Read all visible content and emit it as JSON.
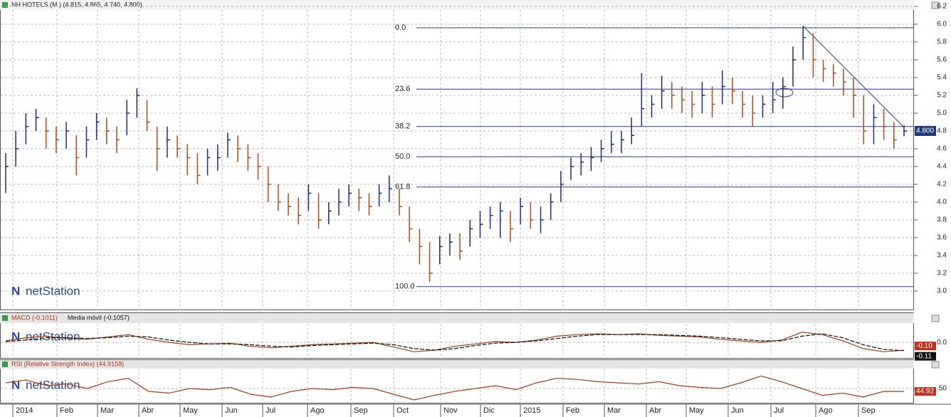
{
  "chart_data": [
    {
      "type": "ohlc",
      "title": "NH HOTELS (M.) (4.815, 4.865, 4.740, 4.800)",
      "watermark": "netStation",
      "up_color": "#1f2a7a",
      "down_color": "#b0481a",
      "last_label": "4.800",
      "x_labels": [
        "2014",
        "Feb",
        "Mar",
        "Abr",
        "May",
        "Jun",
        "Jul",
        "Ago",
        "Sep",
        "Oct",
        "Nov",
        "Dic",
        "2015",
        "Feb",
        "Mar",
        "Abr",
        "May",
        "Jun",
        "Jul",
        "Ago",
        "Sep"
      ],
      "high": [
        4.55,
        4.8,
        5.0,
        5.05,
        4.95,
        4.85,
        4.9,
        4.75,
        4.85,
        5.0,
        4.95,
        4.85,
        5.15,
        5.28,
        5.15,
        4.85,
        4.85,
        4.75,
        4.65,
        4.55,
        4.6,
        4.65,
        4.78,
        4.75,
        4.65,
        4.55,
        4.4,
        4.2,
        4.1,
        4.05,
        4.2,
        4.1,
        4.0,
        4.15,
        4.2,
        4.15,
        4.1,
        4.2,
        4.3,
        4.15,
        3.95,
        3.7,
        3.55,
        3.62,
        3.65,
        3.65,
        3.8,
        3.9,
        3.95,
        4.0,
        3.9,
        4.05,
        4.0,
        3.95,
        4.1,
        4.35,
        4.5,
        4.55,
        4.62,
        4.7,
        4.8,
        4.8,
        4.95,
        5.45,
        5.2,
        5.42,
        5.35,
        5.3,
        5.25,
        5.35,
        5.3,
        5.48,
        5.4,
        5.25,
        5.2,
        5.2,
        5.35,
        5.4,
        5.75,
        5.98,
        5.9,
        5.6,
        5.55,
        5.5,
        5.4,
        5.2,
        5.1,
        5.05,
        4.9,
        4.865
      ],
      "low": [
        4.1,
        4.4,
        4.65,
        4.8,
        4.6,
        4.55,
        4.6,
        4.3,
        4.5,
        4.7,
        4.65,
        4.55,
        4.75,
        4.95,
        4.8,
        4.35,
        4.5,
        4.5,
        4.3,
        4.2,
        4.3,
        4.35,
        4.5,
        4.45,
        4.35,
        4.25,
        4.0,
        3.9,
        3.85,
        3.75,
        3.9,
        3.7,
        3.75,
        3.85,
        3.95,
        3.9,
        3.85,
        3.95,
        4.0,
        3.85,
        3.55,
        3.3,
        3.1,
        3.3,
        3.4,
        3.35,
        3.5,
        3.6,
        3.7,
        3.6,
        3.55,
        3.75,
        3.7,
        3.65,
        3.8,
        4.0,
        4.25,
        4.3,
        4.35,
        4.45,
        4.55,
        4.55,
        4.65,
        4.85,
        4.95,
        5.05,
        5.05,
        5.0,
        4.95,
        5.0,
        4.95,
        5.1,
        5.1,
        4.95,
        4.85,
        4.95,
        5.0,
        5.05,
        5.3,
        5.6,
        5.4,
        5.35,
        5.3,
        5.2,
        4.95,
        4.65,
        4.65,
        4.7,
        4.6,
        4.74
      ],
      "close": [
        4.4,
        4.6,
        4.85,
        4.95,
        4.8,
        4.7,
        4.8,
        4.5,
        4.7,
        4.9,
        4.8,
        4.7,
        5.0,
        5.2,
        4.9,
        4.6,
        4.7,
        4.6,
        4.5,
        4.3,
        4.5,
        4.5,
        4.7,
        4.6,
        4.5,
        4.4,
        4.2,
        4.0,
        3.95,
        3.85,
        4.1,
        3.8,
        3.9,
        4.0,
        4.1,
        4.05,
        3.95,
        4.1,
        4.15,
        3.95,
        3.7,
        3.5,
        3.2,
        3.5,
        3.55,
        3.45,
        3.7,
        3.75,
        3.85,
        3.9,
        3.7,
        3.95,
        3.8,
        3.8,
        4.0,
        4.2,
        4.4,
        4.45,
        4.5,
        4.6,
        4.65,
        4.7,
        4.75,
        5.05,
        5.1,
        5.25,
        5.2,
        5.15,
        5.1,
        5.2,
        5.1,
        5.3,
        5.25,
        5.1,
        5.0,
        5.1,
        5.15,
        5.3,
        5.6,
        5.85,
        5.6,
        5.5,
        5.45,
        5.35,
        5.2,
        4.8,
        4.95,
        4.85,
        4.7,
        4.8
      ],
      "ylim": [
        2.86,
        6.24
      ],
      "yticks": [
        {
          "value": 3.0,
          "label": "3.0"
        },
        {
          "value": 3.2,
          "label": "3.2"
        },
        {
          "value": 3.4,
          "label": "3.4"
        },
        {
          "value": 3.6,
          "label": "3.6"
        },
        {
          "value": 3.8,
          "label": "3.8"
        },
        {
          "value": 4.0,
          "label": "4.0"
        },
        {
          "value": 4.2,
          "label": "4.2"
        },
        {
          "value": 4.4,
          "label": "4.4"
        },
        {
          "value": 4.6,
          "label": "4.6"
        },
        {
          "value": 4.8,
          "label": "4.8"
        },
        {
          "value": 5.0,
          "label": "5.0"
        },
        {
          "value": 5.2,
          "label": "5.2"
        },
        {
          "value": 5.4,
          "label": "5.4"
        },
        {
          "value": 5.6,
          "label": "5.6"
        },
        {
          "value": 5.8,
          "label": "5.8"
        },
        {
          "value": 6.0,
          "label": "6.0"
        },
        {
          "value": 6.2,
          "label": "6.2"
        }
      ],
      "fib_color": "#2a3a8a",
      "fib_levels": [
        {
          "value": 0,
          "label": "0.0",
          "price": 5.96
        },
        {
          "value": 23.6,
          "label": "23.6",
          "price": 5.27
        },
        {
          "value": 38.2,
          "label": "38.2",
          "price": 4.85
        },
        {
          "value": 50,
          "label": "50.0",
          "price": 4.51
        },
        {
          "value": 61.8,
          "label": "61.8",
          "price": 4.17
        },
        {
          "value": 100,
          "label": "100.0",
          "price": 3.05
        }
      ],
      "trendline": {
        "x": [
          79,
          89
        ],
        "values": [
          5.98,
          4.84
        ]
      }
    },
    {
      "type": "macd",
      "watermark": "netStation",
      "series": [
        {
          "name": "MACD (-0.1011)",
          "color": "#a0401a",
          "last_label": "-0.10",
          "label_color": "#c0301a",
          "values": [
            0.02,
            0.06,
            0.08,
            0.05,
            0.04,
            0.07,
            0.1,
            0.04,
            0.0,
            -0.03,
            -0.02,
            -0.01,
            -0.05,
            -0.07,
            -0.05,
            -0.03,
            -0.02,
            -0.01,
            0.0,
            -0.06,
            -0.12,
            -0.1,
            -0.05,
            -0.02,
            0.01,
            0.0,
            0.03,
            0.08,
            0.1,
            0.11,
            0.1,
            0.11,
            0.09,
            0.08,
            0.07,
            0.04,
            0.02,
            0.0,
            0.03,
            0.13,
            0.1,
            0.02,
            -0.08,
            -0.12,
            -0.1011
          ]
        },
        {
          "name": "Media móvil (-0.1057)",
          "color": "#111111",
          "last_label": "-0.11",
          "label_color": "#111111",
          "values": [
            0.01,
            0.03,
            0.06,
            0.06,
            0.05,
            0.06,
            0.08,
            0.07,
            0.03,
            0.0,
            -0.02,
            -0.02,
            -0.03,
            -0.05,
            -0.06,
            -0.04,
            -0.03,
            -0.02,
            -0.01,
            -0.03,
            -0.08,
            -0.1,
            -0.08,
            -0.04,
            -0.01,
            0.0,
            0.02,
            0.05,
            0.08,
            0.1,
            0.1,
            0.1,
            0.1,
            0.09,
            0.08,
            0.06,
            0.04,
            0.02,
            0.02,
            0.08,
            0.11,
            0.06,
            -0.03,
            -0.09,
            -0.1057
          ]
        }
      ],
      "ylim": [
        -0.2,
        0.23
      ],
      "yticks": [
        {
          "value": 0,
          "label": "0.0"
        }
      ]
    },
    {
      "type": "line",
      "watermark": "netStation",
      "series": [
        {
          "name": "RSI (Relative Strength Index) (44.9158)",
          "color": "#a0401a",
          "last_label": "44.92",
          "label_color": "#c0301a",
          "values": [
            60,
            65,
            55,
            58,
            50,
            62,
            68,
            45,
            42,
            50,
            48,
            52,
            40,
            35,
            45,
            50,
            48,
            52,
            50,
            40,
            30,
            38,
            45,
            50,
            55,
            48,
            60,
            68,
            66,
            62,
            60,
            58,
            62,
            55,
            52,
            50,
            60,
            72,
            62,
            50,
            38,
            42,
            35,
            45,
            44.9158
          ]
        }
      ],
      "ylim": [
        25,
        85
      ],
      "yticks": [
        50
      ]
    }
  ]
}
